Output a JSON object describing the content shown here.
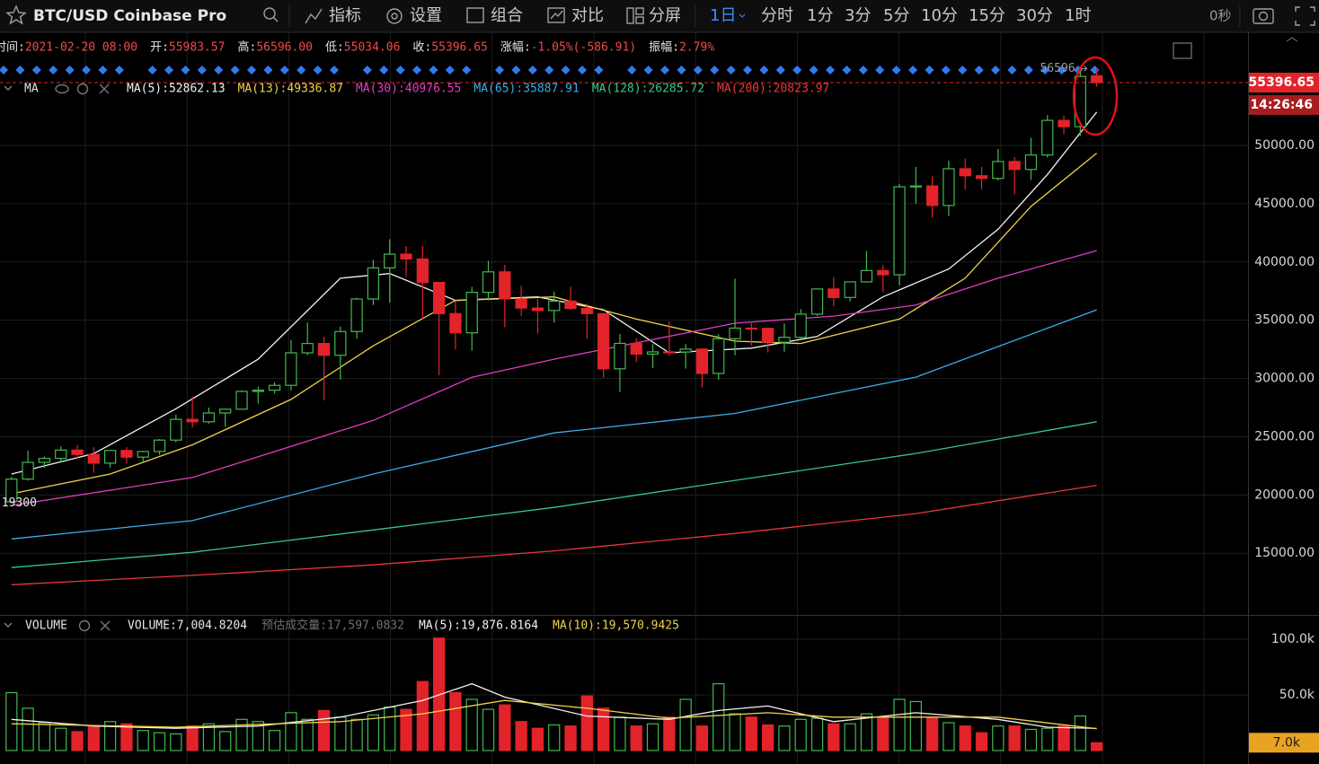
{
  "toolbar": {
    "symbol": "BTC/USD Coinbase Pro",
    "buttons": [
      "指标",
      "设置",
      "组合",
      "对比",
      "分屏"
    ],
    "intervals": [
      "1日",
      "分时",
      "1分",
      "3分",
      "5分",
      "10分",
      "15分",
      "30分",
      "1时"
    ],
    "countdown": "0秒"
  },
  "info_bar": [
    {
      "label": "时间:",
      "value": "2021-02-20 08:00"
    },
    {
      "label": "开:",
      "value": "55983.57"
    },
    {
      "label": "高:",
      "value": "56596.00"
    },
    {
      "label": "低:",
      "value": "55034.06"
    },
    {
      "label": "收:",
      "value": "55396.65"
    },
    {
      "label": "涨幅:",
      "value": "-1.05%(-586.91)"
    },
    {
      "label": "振幅:",
      "value": "2.79%"
    }
  ],
  "chart_data": [
    {
      "type": "candlestick",
      "legend_title": "MA",
      "up_color": "#45b84f",
      "down_color": "#e3232a",
      "open": [
        19426,
        21360,
        22800,
        23140,
        23850,
        23480,
        22730,
        23820,
        23250,
        23730,
        24710,
        26490,
        26280,
        27040,
        27360,
        28890,
        28990,
        29410,
        32200,
        33000,
        31990,
        34030,
        36820,
        39490,
        40670,
        40250,
        38240,
        35570,
        33920,
        37390,
        39150,
        36830,
        36040,
        35830,
        36640,
        36010,
        35560,
        30830,
        33010,
        32090,
        32280,
        32270,
        32520,
        30430,
        33410,
        34320,
        34300,
        33110,
        33530,
        35520,
        37680,
        36950,
        38290,
        39260,
        38900,
        46450,
        46520,
        44850,
        48000,
        47400,
        47170,
        48620,
        47940,
        49180,
        52150,
        51610,
        55983.57
      ],
      "high": [
        21560,
        23800,
        23290,
        24170,
        24300,
        24100,
        23830,
        24100,
        23780,
        24790,
        26880,
        28420,
        27500,
        27400,
        28980,
        29300,
        29680,
        33300,
        34800,
        33600,
        34450,
        36940,
        40180,
        41950,
        41380,
        41380,
        38260,
        36630,
        37860,
        40100,
        39750,
        37950,
        36850,
        37450,
        37860,
        36430,
        35600,
        33830,
        33460,
        32950,
        34880,
        32950,
        32560,
        33800,
        38570,
        34900,
        34330,
        34720,
        35960,
        37650,
        38700,
        38300,
        40950,
        39710,
        46700,
        48150,
        47350,
        48690,
        48880,
        48150,
        49700,
        49000,
        50650,
        52600,
        52550,
        56340,
        56596
      ],
      "low": [
        19300,
        21230,
        22350,
        22760,
        23070,
        21900,
        22350,
        22700,
        22720,
        23440,
        24510,
        25800,
        26120,
        25850,
        27330,
        27850,
        28700,
        28950,
        32000,
        28130,
        29900,
        33400,
        36300,
        36500,
        38720,
        35110,
        30260,
        32500,
        32380,
        36700,
        34400,
        35370,
        33850,
        34800,
        35900,
        33400,
        30070,
        28850,
        31400,
        30900,
        31910,
        30840,
        29240,
        29900,
        31990,
        32840,
        32230,
        32300,
        33430,
        35380,
        36200,
        36600,
        38230,
        37400,
        37990,
        45000,
        43800,
        43950,
        46200,
        46240,
        47000,
        45800,
        47030,
        48960,
        50950,
        50800,
        55034.06
      ],
      "close": [
        21360,
        22800,
        23140,
        23850,
        23480,
        22730,
        23820,
        23250,
        23730,
        24710,
        26490,
        26280,
        27040,
        27360,
        28890,
        28990,
        29410,
        32200,
        33000,
        31990,
        34030,
        36820,
        39490,
        40670,
        40250,
        38240,
        35570,
        33920,
        37390,
        39150,
        36830,
        36040,
        35830,
        36640,
        36010,
        35560,
        30830,
        33010,
        32090,
        32280,
        32270,
        32520,
        30430,
        33410,
        34320,
        34300,
        33110,
        33530,
        35520,
        37680,
        36950,
        38290,
        39260,
        38900,
        46450,
        46520,
        44850,
        48000,
        47400,
        47170,
        48620,
        47940,
        49180,
        52150,
        51610,
        55920,
        55396.65
      ],
      "xlim": [
        -0.7,
        75.2
      ],
      "ylim": [
        9700,
        59400
      ],
      "yticks": [
        {
          "value": 15000,
          "label": "15000.00"
        },
        {
          "value": 20000,
          "label": "20000.00"
        },
        {
          "value": 25000,
          "label": "25000.00"
        },
        {
          "value": 30000,
          "label": "30000.00"
        },
        {
          "value": 35000,
          "label": "35000.00"
        },
        {
          "value": 40000,
          "label": "40000.00"
        },
        {
          "value": 45000,
          "label": "45000.00"
        },
        {
          "value": 50000,
          "label": "50000.00"
        }
      ],
      "grid": true,
      "last_price_label": "55396.65",
      "bar_countdown": "14:26:46",
      "high_marker": "56596",
      "low_marker": "19300",
      "ma_lines": [
        {
          "label": "MA(5):52862.13",
          "color": "#f2f2f2",
          "x": [
            0,
            5,
            10,
            15,
            20,
            23,
            27,
            32,
            36,
            40,
            45,
            49,
            53,
            57,
            60,
            63,
            66
          ],
          "values": [
            21800,
            23550,
            27400,
            31650,
            38600,
            39000,
            36700,
            37000,
            35900,
            32200,
            32600,
            33600,
            37000,
            39400,
            42800,
            47500,
            52862.13
          ]
        },
        {
          "label": "MA(13):49336.87",
          "color": "#f0d24a",
          "x": [
            0,
            6,
            11,
            17,
            22,
            27,
            33,
            38,
            44,
            48,
            54,
            58,
            62,
            66
          ],
          "values": [
            20100,
            21800,
            24300,
            28200,
            32800,
            36700,
            37000,
            35100,
            33200,
            33000,
            35100,
            38600,
            44760,
            49336.87
          ]
        },
        {
          "label": "MA(30):40976.55",
          "color": "#e03cc4",
          "x": [
            0,
            11,
            22,
            28,
            33,
            44,
            50,
            55,
            60,
            66
          ],
          "values": [
            19100,
            21500,
            26400,
            30100,
            31650,
            34740,
            35350,
            36300,
            38600,
            40976.55
          ]
        },
        {
          "label": "MA(65):35887.91",
          "color": "#3aaee6",
          "x": [
            0,
            11,
            22,
            33,
            44,
            55,
            66
          ],
          "values": [
            16230,
            17800,
            21800,
            25330,
            27000,
            30110,
            35887.91
          ]
        },
        {
          "label": "MA(128):26285.72",
          "color": "#35c68a",
          "x": [
            0,
            11,
            22,
            33,
            44,
            55,
            66
          ],
          "values": [
            13770,
            15080,
            17000,
            18930,
            21250,
            23560,
            26285.72
          ]
        },
        {
          "label": "MA(200):20823.97",
          "color": "#e8383c",
          "x": [
            0,
            11,
            22,
            33,
            44,
            55,
            66
          ],
          "values": [
            12300,
            13100,
            14000,
            15200,
            16700,
            18400,
            20823.97
          ]
        }
      ]
    },
    {
      "type": "bar",
      "legend_title": "VOLUME",
      "legend_items": [
        {
          "label": "VOLUME:7,004.8204",
          "color": "#e6e6e6"
        },
        {
          "label": "预估成交量:17,597.0832",
          "color": "#6f6f6f"
        }
      ],
      "values": [
        52000,
        38000,
        25000,
        20000,
        17000,
        22000,
        26000,
        24000,
        18000,
        16000,
        15000,
        22000,
        24000,
        17000,
        28000,
        26000,
        18000,
        34000,
        28000,
        36000,
        30000,
        28000,
        32000,
        39000,
        37000,
        62000,
        101000,
        52000,
        46000,
        37000,
        41000,
        26000,
        20000,
        23000,
        22000,
        49000,
        38000,
        30000,
        22000,
        24000,
        30000,
        46000,
        22000,
        60000,
        33000,
        30000,
        23000,
        22000,
        28000,
        29000,
        24000,
        24000,
        33000,
        30000,
        46000,
        44000,
        29000,
        25000,
        22000,
        16000,
        22000,
        22000,
        19000,
        20000,
        22000,
        31000,
        7004.8204
      ],
      "ylim": [
        0,
        121000
      ],
      "yticks": [
        {
          "value": 50000,
          "label": "50.0k"
        },
        {
          "value": 100000,
          "label": "100.0k"
        }
      ],
      "last_label": "7.0k",
      "ma_lines": [
        {
          "label": "MA(5):19,876.8164",
          "color": "#f2f2f2",
          "x": [
            0,
            5,
            10,
            15,
            20,
            25,
            28,
            30,
            35,
            40,
            43,
            46,
            50,
            55,
            60,
            63,
            66
          ],
          "values": [
            28000,
            22000,
            20000,
            22000,
            30000,
            45000,
            60000,
            48000,
            31000,
            28000,
            36000,
            40000,
            26000,
            34000,
            28000,
            21000,
            19876.8164
          ]
        },
        {
          "label": "MA(10):19,570.9425",
          "color": "#f0d24a",
          "x": [
            0,
            10,
            20,
            25,
            30,
            35,
            40,
            46,
            50,
            55,
            60,
            66
          ],
          "values": [
            24000,
            21000,
            26000,
            33000,
            45000,
            38000,
            29000,
            34000,
            30000,
            30000,
            30000,
            19570.9425
          ]
        }
      ]
    }
  ]
}
